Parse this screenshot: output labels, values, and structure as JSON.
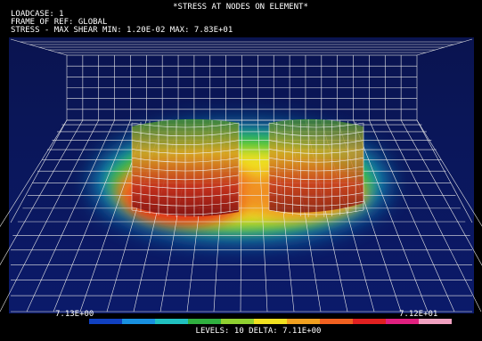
{
  "header": {
    "title": "*STRESS AT NODES ON ELEMENT*",
    "lines": [
      "LOADCASE: 1",
      "FRAME OF REF: GLOBAL",
      "STRESS - MAX SHEAR MIN: 1.20E-02 MAX: 7.83E+01"
    ]
  },
  "legend": {
    "min_label": "7.13E+00",
    "max_label": "7.12E+01",
    "levels_text": "LEVELS: 10 DELTA: 7.11E+00"
  }
}
